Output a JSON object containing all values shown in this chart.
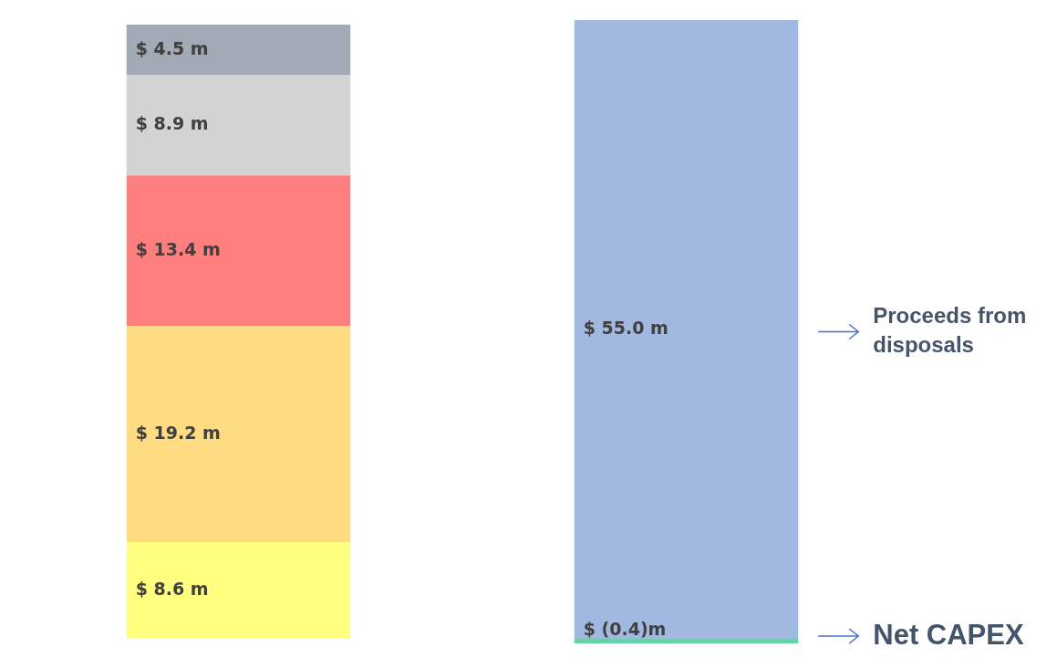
{
  "chart_data": {
    "type": "bar",
    "stacked": true,
    "tick_labels": false,
    "legend": false,
    "categories": [
      null,
      null
    ],
    "series": [
      {
        "color": "#ffff80",
        "values": [
          8.6,
          null
        ],
        "value_labels": [
          "$ 8.6 m",
          null
        ]
      },
      {
        "color": "#ffdc82",
        "values": [
          19.2,
          null
        ],
        "value_labels": [
          "$ 19.2 m",
          null
        ]
      },
      {
        "color": "#ff7f7f",
        "values": [
          13.4,
          null
        ],
        "value_labels": [
          "$ 13.4 m",
          null
        ]
      },
      {
        "color": "#d3d3d3",
        "values": [
          8.9,
          null
        ],
        "value_labels": [
          "$ 8.9 m",
          null
        ]
      },
      {
        "color": "#a2aab5",
        "values": [
          4.5,
          null
        ],
        "value_labels": [
          "$ 4.5 m",
          null
        ]
      },
      {
        "color": "#6ad0a8",
        "values": [
          null,
          -0.4
        ],
        "value_labels": [
          null,
          "$ (0.4)m"
        ]
      },
      {
        "color": "#a1b8e0",
        "values": [
          null,
          55.0
        ],
        "value_labels": [
          null,
          "$ 55.0 m"
        ]
      }
    ],
    "annotations": [
      "Proceeds from disposals",
      "Net CAPEX"
    ]
  }
}
